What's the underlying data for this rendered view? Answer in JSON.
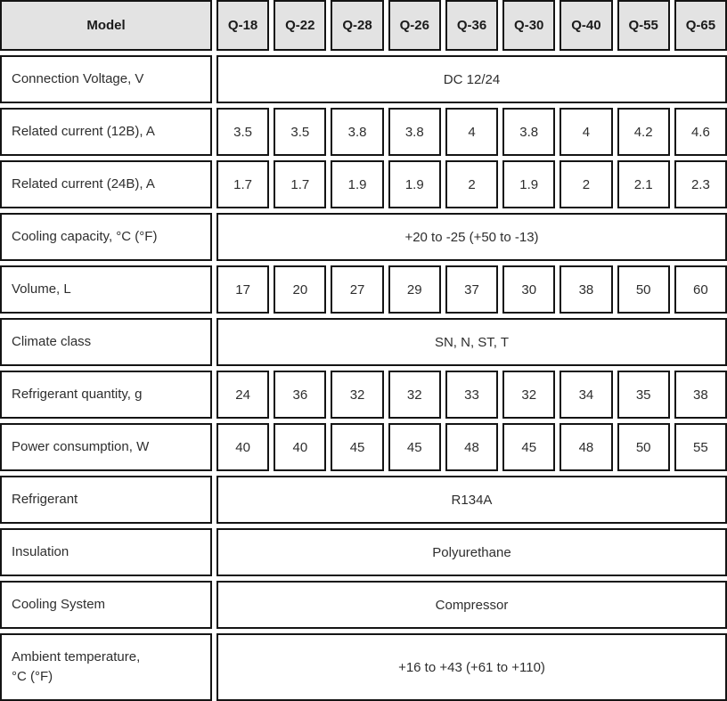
{
  "colors": {
    "header_bg": "#e3e3e3",
    "border": "#141414",
    "text": "#2e2e2e"
  },
  "chart_data": {
    "type": "table",
    "header": {
      "label": "Model",
      "columns": [
        "Q-18",
        "Q-22",
        "Q-28",
        "Q-26",
        "Q-36",
        "Q-30",
        "Q-40",
        "Q-55",
        "Q-65"
      ]
    },
    "rows": [
      {
        "label": "Connection Voltage, V",
        "span": "DC 12/24"
      },
      {
        "label": "Related current (12B), A",
        "values": [
          "3.5",
          "3.5",
          "3.8",
          "3.8",
          "4",
          "3.8",
          "4",
          "4.2",
          "4.6"
        ]
      },
      {
        "label": "Related current (24B), A",
        "values": [
          "1.7",
          "1.7",
          "1.9",
          "1.9",
          "2",
          "1.9",
          "2",
          "2.1",
          "2.3"
        ]
      },
      {
        "label": "Cooling capacity, °C (°F)",
        "span": "+20 to -25 (+50 to -13)"
      },
      {
        "label": "Volume, L",
        "values": [
          "17",
          "20",
          "27",
          "29",
          "37",
          "30",
          "38",
          "50",
          "60"
        ]
      },
      {
        "label": "Climate class",
        "span": "SN, N, ST, T"
      },
      {
        "label": "Refrigerant quantity, g",
        "values": [
          "24",
          "36",
          "32",
          "32",
          "33",
          "32",
          "34",
          "35",
          "38"
        ]
      },
      {
        "label": "Power consumption, W",
        "values": [
          "40",
          "40",
          "45",
          "45",
          "48",
          "45",
          "48",
          "50",
          "55"
        ]
      },
      {
        "label": "Refrigerant",
        "span": "R134A"
      },
      {
        "label": "Insulation",
        "span": "Polyurethane"
      },
      {
        "label": "Cooling System",
        "span": "Compressor"
      },
      {
        "label": "Ambient temperature,\n°C (°F)",
        "span": "+16 to +43 (+61 to +110)"
      }
    ]
  }
}
